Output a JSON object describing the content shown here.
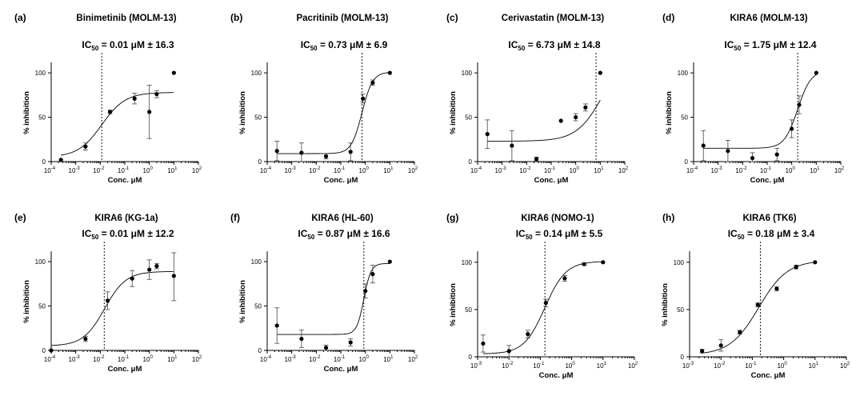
{
  "figure": {
    "conc_unit_symbol": "μM",
    "pm_symbol": "±",
    "ic_prefix": "IC",
    "ic_subscript": "50",
    "colors": {
      "foreground": "#000000",
      "error_bar": "#444444",
      "background": "#ffffff"
    }
  },
  "chart_data": [
    {
      "type": "scatter",
      "letter": "(a)",
      "title": "Binimetinib (MOLM-13)",
      "ic50_value": "0.01",
      "ic50_sd": "16.3",
      "ic50_x": 0.0115,
      "xlabel": "Conc. μM",
      "ylabel": "% inhibition",
      "x_scale": "log",
      "xlim_exp": [
        -4,
        2
      ],
      "ylim": [
        0,
        110
      ],
      "yticks": [
        0,
        50,
        100
      ],
      "grid": false,
      "fit_curve": {
        "bottom": 5,
        "top": 78,
        "ec50": 0.0115,
        "hill": 0.9
      },
      "points": [
        {
          "x": 0.00025,
          "y": 2,
          "err": 0
        },
        {
          "x": 0.0025,
          "y": 17,
          "err": 4
        },
        {
          "x": 0.025,
          "y": 56,
          "err": 2
        },
        {
          "x": 0.25,
          "y": 71,
          "err": 6
        },
        {
          "x": 1.0,
          "y": 56,
          "err": 30
        },
        {
          "x": 2.0,
          "y": 76,
          "err": 4
        },
        {
          "x": 10,
          "y": 100,
          "err": 0
        }
      ]
    },
    {
      "type": "scatter",
      "letter": "(b)",
      "title": "Pacritinib (MOLM-13)",
      "ic50_value": "0.73",
      "ic50_sd": "6.9",
      "ic50_x": 0.73,
      "xlabel": "Conc. μM",
      "ylabel": "% inhibition",
      "x_scale": "log",
      "xlim_exp": [
        -4,
        2
      ],
      "ylim": [
        0,
        110
      ],
      "yticks": [
        0,
        50,
        100
      ],
      "grid": false,
      "fit_curve": {
        "bottom": 9,
        "top": 101,
        "ec50": 0.73,
        "hill": 2.0
      },
      "points": [
        {
          "x": 0.00025,
          "y": 12,
          "err": 11
        },
        {
          "x": 0.0025,
          "y": 10,
          "err": 11
        },
        {
          "x": 0.025,
          "y": 6,
          "err": 3
        },
        {
          "x": 0.25,
          "y": 11,
          "err": 10
        },
        {
          "x": 0.8,
          "y": 71,
          "err": 5
        },
        {
          "x": 2.0,
          "y": 89,
          "err": 3
        },
        {
          "x": 10,
          "y": 100,
          "err": 0
        }
      ]
    },
    {
      "type": "scatter",
      "letter": "(c)",
      "title": "Cerivastatin (MOLM-13)",
      "ic50_value": "6.73",
      "ic50_sd": "14.8",
      "ic50_x": 6.73,
      "xlabel": "Conc. μM",
      "ylabel": "% inhibition",
      "x_scale": "log",
      "xlim_exp": [
        -4,
        2
      ],
      "ylim": [
        0,
        110
      ],
      "yticks": [
        0,
        50,
        100
      ],
      "grid": false,
      "fit_curve": {
        "bottom": 23,
        "top": 130,
        "ec50": 14,
        "hill": 0.8
      },
      "points": [
        {
          "x": 0.00025,
          "y": 31,
          "err": 16
        },
        {
          "x": 0.0025,
          "y": 18,
          "err": 17
        },
        {
          "x": 0.025,
          "y": 3,
          "err": 2
        },
        {
          "x": 0.25,
          "y": 46,
          "err": 0
        },
        {
          "x": 1.0,
          "y": 50,
          "err": 4
        },
        {
          "x": 2.5,
          "y": 61,
          "err": 4
        },
        {
          "x": 10,
          "y": 100,
          "err": 0
        }
      ]
    },
    {
      "type": "scatter",
      "letter": "(d)",
      "title": "KIRA6 (MOLM-13)",
      "ic50_value": "1.75",
      "ic50_sd": "12.4",
      "ic50_x": 1.75,
      "xlabel": "Conc. μM",
      "ylabel": "% inhibition",
      "x_scale": "log",
      "xlim_exp": [
        -4,
        2
      ],
      "ylim": [
        0,
        110
      ],
      "yticks": [
        0,
        50,
        100
      ],
      "grid": false,
      "fit_curve": {
        "bottom": 15,
        "top": 103,
        "ec50": 1.75,
        "hill": 1.6
      },
      "points": [
        {
          "x": 0.00025,
          "y": 18,
          "err": 17
        },
        {
          "x": 0.0025,
          "y": 12,
          "err": 12
        },
        {
          "x": 0.025,
          "y": 4,
          "err": 6
        },
        {
          "x": 0.25,
          "y": 8,
          "err": 7
        },
        {
          "x": 1.0,
          "y": 37,
          "err": 10
        },
        {
          "x": 2.0,
          "y": 64,
          "err": 10
        },
        {
          "x": 10,
          "y": 100,
          "err": 0
        }
      ]
    },
    {
      "type": "scatter",
      "letter": "(e)",
      "title": "KIRA6 (KG-1a)",
      "ic50_value": "0.01",
      "ic50_sd": "12.2",
      "ic50_x": 0.0145,
      "xlabel": "Conc. μM",
      "ylabel": "% inhibition",
      "x_scale": "log",
      "xlim_exp": [
        -4,
        2
      ],
      "ylim": [
        0,
        110
      ],
      "yticks": [
        0,
        50,
        100
      ],
      "grid": false,
      "fit_curve": {
        "bottom": 5,
        "top": 89,
        "ec50": 0.015,
        "hill": 1.0
      },
      "points": [
        {
          "x": 0.0001,
          "y": 0,
          "err": 0
        },
        {
          "x": 0.0025,
          "y": 13,
          "err": 3
        },
        {
          "x": 0.02,
          "y": 56,
          "err": 10
        },
        {
          "x": 0.2,
          "y": 81,
          "err": 9
        },
        {
          "x": 1.0,
          "y": 91,
          "err": 11
        },
        {
          "x": 2.0,
          "y": 95,
          "err": 3
        },
        {
          "x": 10,
          "y": 84,
          "err": 28
        }
      ]
    },
    {
      "type": "scatter",
      "letter": "(f)",
      "title": "KIRA6 (HL-60)",
      "ic50_value": "0.87",
      "ic50_sd": "16.6",
      "ic50_x": 0.87,
      "xlabel": "Conc. μM",
      "ylabel": "% inhibition",
      "x_scale": "log",
      "xlim_exp": [
        -4,
        2
      ],
      "ylim": [
        0,
        110
      ],
      "yticks": [
        0,
        50,
        100
      ],
      "grid": false,
      "fit_curve": {
        "bottom": 18,
        "top": 98,
        "ec50": 0.87,
        "hill": 3.0
      },
      "points": [
        {
          "x": 0.00025,
          "y": 28,
          "err": 20
        },
        {
          "x": 0.0025,
          "y": 13,
          "err": 10
        },
        {
          "x": 0.025,
          "y": 3,
          "err": 3
        },
        {
          "x": 0.25,
          "y": 9,
          "err": 4
        },
        {
          "x": 1.0,
          "y": 67,
          "err": 8
        },
        {
          "x": 2.0,
          "y": 86,
          "err": 10
        },
        {
          "x": 10,
          "y": 100,
          "err": 0
        }
      ]
    },
    {
      "type": "scatter",
      "letter": "(g)",
      "title": "KIRA6 (NOMO-1)",
      "ic50_value": "0.14",
      "ic50_sd": "5.5",
      "ic50_x": 0.14,
      "xlabel": "Conc. μM",
      "ylabel": "% inhibition",
      "x_scale": "log",
      "xlim_exp": [
        -3,
        2
      ],
      "ylim": [
        0,
        110
      ],
      "yticks": [
        0,
        50,
        100
      ],
      "grid": false,
      "fit_curve": {
        "bottom": 3,
        "top": 101,
        "ec50": 0.14,
        "hill": 1.3
      },
      "points": [
        {
          "x": 0.0015,
          "y": 14,
          "err": 9
        },
        {
          "x": 0.01,
          "y": 6,
          "err": 6
        },
        {
          "x": 0.04,
          "y": 24,
          "err": 4
        },
        {
          "x": 0.15,
          "y": 57,
          "err": 4
        },
        {
          "x": 0.6,
          "y": 83,
          "err": 3
        },
        {
          "x": 2.5,
          "y": 98,
          "err": 1
        },
        {
          "x": 10,
          "y": 100,
          "err": 0
        }
      ]
    },
    {
      "type": "scatter",
      "letter": "(h)",
      "title": "KIRA6 (TK6)",
      "ic50_value": "0.18",
      "ic50_sd": "3.4",
      "ic50_x": 0.18,
      "xlabel": "Conc. μM",
      "ylabel": "% inhibition",
      "x_scale": "log",
      "xlim_exp": [
        -3,
        2
      ],
      "ylim": [
        0,
        110
      ],
      "yticks": [
        0,
        50,
        100
      ],
      "grid": false,
      "fit_curve": {
        "bottom": 2,
        "top": 102,
        "ec50": 0.16,
        "hill": 0.95
      },
      "points": [
        {
          "x": 0.0025,
          "y": 6,
          "err": 2
        },
        {
          "x": 0.01,
          "y": 12,
          "err": 6
        },
        {
          "x": 0.04,
          "y": 26,
          "err": 2
        },
        {
          "x": 0.15,
          "y": 55,
          "err": 2
        },
        {
          "x": 0.6,
          "y": 72,
          "err": 2
        },
        {
          "x": 2.5,
          "y": 95,
          "err": 2
        },
        {
          "x": 10,
          "y": 100,
          "err": 0
        }
      ]
    }
  ]
}
